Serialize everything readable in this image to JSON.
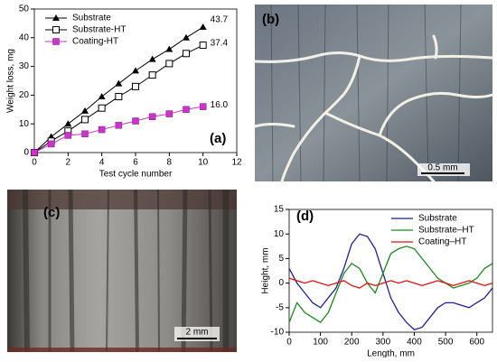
{
  "chart_data": [
    {
      "type": "line",
      "panel_label": "(a)",
      "x_label": "Test cycle number",
      "y_label": "Weight loss, mg",
      "x": [
        0,
        1,
        2,
        3,
        4,
        5,
        6,
        7,
        8,
        9,
        10
      ],
      "xlim": [
        0,
        12
      ],
      "xticks": [
        0,
        2,
        4,
        6,
        8,
        10,
        12
      ],
      "ylim": [
        0,
        50
      ],
      "yticks": [
        0,
        10,
        20,
        30,
        40,
        50
      ],
      "legend": "upper left",
      "series": [
        {
          "name": "Substrate",
          "color": "#000000",
          "marker": "triangle",
          "values": [
            0,
            5.5,
            10,
            14.5,
            19.5,
            24,
            28.5,
            32.5,
            36,
            40,
            43.7
          ],
          "value_labels": [
            null,
            null,
            null,
            null,
            null,
            null,
            null,
            null,
            null,
            null,
            "43.7"
          ]
        },
        {
          "name": "Substrate-HT",
          "color": "#000000",
          "marker": "open-square",
          "values": [
            0,
            4,
            7.5,
            11.5,
            15.5,
            19.5,
            23,
            27,
            31,
            34.5,
            37.4
          ],
          "value_labels": [
            null,
            null,
            null,
            null,
            null,
            null,
            null,
            null,
            null,
            null,
            "37.4"
          ]
        },
        {
          "name": "Coating-HT",
          "color": "#cc33cc",
          "marker": "square",
          "values": [
            0,
            3,
            6,
            6.5,
            8,
            9.5,
            11,
            12.5,
            13.5,
            15,
            16
          ],
          "value_labels": [
            null,
            null,
            null,
            null,
            null,
            null,
            null,
            null,
            null,
            null,
            "16.0"
          ]
        }
      ]
    },
    {
      "type": "line",
      "panel_label": "(d)",
      "x_label": "Length, mm",
      "y_label": "Height, mm",
      "x": [
        0,
        25,
        50,
        75,
        100,
        125,
        150,
        175,
        200,
        225,
        250,
        275,
        300,
        325,
        350,
        375,
        400,
        425,
        450,
        475,
        500,
        525,
        550,
        575,
        600,
        625,
        650
      ],
      "xlim": [
        0,
        650
      ],
      "xticks": [
        0,
        100,
        200,
        300,
        400,
        500,
        600
      ],
      "ylim": [
        -10,
        15
      ],
      "yticks": [
        -10,
        -5,
        0,
        5,
        10,
        15
      ],
      "legend": "upper right",
      "series": [
        {
          "name": "Substrate",
          "color": "#1f1f9f",
          "values": [
            3,
            0,
            -2,
            -4,
            -5,
            -3,
            -1,
            3,
            8,
            10,
            9.5,
            7,
            2,
            -3,
            -6,
            -8,
            -9.5,
            -9,
            -7,
            -5,
            -4,
            -4,
            -4.5,
            -5,
            -4,
            -3,
            -1
          ]
        },
        {
          "name": "Substrate–HT",
          "color": "#1a8a1a",
          "values": [
            -8,
            -4,
            -6,
            -7,
            -8,
            -6,
            -2,
            2,
            4,
            3,
            0,
            -2,
            2,
            6,
            7,
            7.5,
            7,
            5,
            3,
            1,
            0,
            -1,
            -0.5,
            0,
            1,
            3,
            4
          ]
        },
        {
          "name": "Coating–HT",
          "color": "#e01010",
          "values": [
            1,
            0.5,
            0,
            0.5,
            0,
            -0.5,
            0,
            0.5,
            -0.5,
            -1,
            0,
            -0.5,
            0,
            0.5,
            0,
            0.5,
            0,
            -0.5,
            0,
            0.5,
            0,
            -0.5,
            0,
            0.5,
            0,
            -0.5,
            0
          ]
        }
      ]
    }
  ],
  "images": [
    {
      "panel_label": "(b)",
      "scale_bar": "0.5 mm"
    },
    {
      "panel_label": "(c)",
      "scale_bar": "2 mm"
    }
  ]
}
